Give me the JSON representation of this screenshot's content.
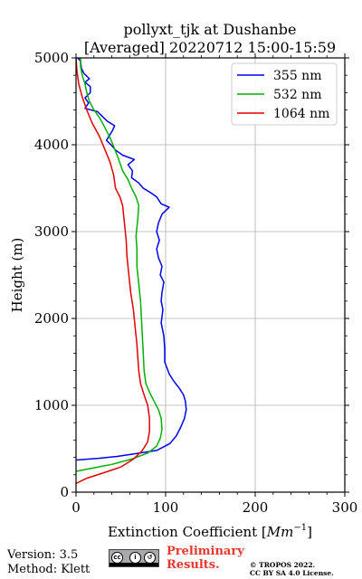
{
  "chart_data": {
    "type": "line",
    "title": "pollyxt_tjk at Dushanbe",
    "subtitle": "[Averaged] 20220712 15:00-15:59",
    "xlabel": "Extinction Coefficient [",
    "xlabel_unit": "Mm",
    "xlabel_exp": "−1",
    "xlabel_close": "]",
    "ylabel": "Height (m)",
    "xlim": [
      0,
      300
    ],
    "ylim": [
      0,
      5000
    ],
    "x_ticks": [
      "0",
      "100",
      "200",
      "300"
    ],
    "y_ticks": [
      "0",
      "1000",
      "2000",
      "3000",
      "4000",
      "5000"
    ],
    "grid": true,
    "legend_position": "top-right",
    "series": [
      {
        "name": "355 nm",
        "color": "#0000ee",
        "points": [
          [
            0,
            370
          ],
          [
            25,
            390
          ],
          [
            45,
            410
          ],
          [
            68,
            445
          ],
          [
            90,
            480
          ],
          [
            105,
            560
          ],
          [
            112,
            650
          ],
          [
            117,
            750
          ],
          [
            121,
            850
          ],
          [
            123,
            950
          ],
          [
            122,
            1050
          ],
          [
            120,
            1120
          ],
          [
            115,
            1200
          ],
          [
            109,
            1280
          ],
          [
            104,
            1360
          ],
          [
            99,
            1500
          ],
          [
            99,
            1650
          ],
          [
            98,
            1800
          ],
          [
            95,
            1950
          ],
          [
            97,
            2100
          ],
          [
            95,
            2200
          ],
          [
            96,
            2300
          ],
          [
            98,
            2420
          ],
          [
            94,
            2500
          ],
          [
            96,
            2600
          ],
          [
            92,
            2700
          ],
          [
            90,
            2800
          ],
          [
            93,
            2900
          ],
          [
            90,
            3000
          ],
          [
            92,
            3100
          ],
          [
            96,
            3200
          ],
          [
            104,
            3280
          ],
          [
            95,
            3320
          ],
          [
            90,
            3400
          ],
          [
            83,
            3450
          ],
          [
            75,
            3500
          ],
          [
            70,
            3560
          ],
          [
            62,
            3620
          ],
          [
            63,
            3700
          ],
          [
            58,
            3770
          ],
          [
            65,
            3830
          ],
          [
            52,
            3880
          ],
          [
            44,
            3940
          ],
          [
            39,
            4000
          ],
          [
            34,
            4050
          ],
          [
            37,
            4100
          ],
          [
            41,
            4170
          ],
          [
            43,
            4220
          ],
          [
            35,
            4270
          ],
          [
            29,
            4330
          ],
          [
            24,
            4380
          ],
          [
            10,
            4420
          ],
          [
            14,
            4480
          ],
          [
            10,
            4540
          ],
          [
            16,
            4600
          ],
          [
            16,
            4670
          ],
          [
            10,
            4720
          ],
          [
            15,
            4760
          ],
          [
            9,
            4820
          ],
          [
            6,
            4880
          ],
          [
            5,
            4960
          ],
          [
            2,
            5000
          ]
        ]
      },
      {
        "name": "532 nm",
        "color": "#00b000",
        "points": [
          [
            0,
            240
          ],
          [
            20,
            280
          ],
          [
            40,
            320
          ],
          [
            62,
            380
          ],
          [
            80,
            450
          ],
          [
            90,
            530
          ],
          [
            94,
            620
          ],
          [
            96,
            720
          ],
          [
            95,
            850
          ],
          [
            92,
            950
          ],
          [
            87,
            1050
          ],
          [
            82,
            1150
          ],
          [
            78,
            1250
          ],
          [
            76,
            1400
          ],
          [
            75,
            1600
          ],
          [
            74,
            1800
          ],
          [
            73,
            2000
          ],
          [
            72,
            2200
          ],
          [
            70,
            2400
          ],
          [
            68,
            2600
          ],
          [
            68,
            2800
          ],
          [
            67,
            2950
          ],
          [
            69,
            3150
          ],
          [
            70,
            3300
          ],
          [
            67,
            3400
          ],
          [
            62,
            3500
          ],
          [
            58,
            3600
          ],
          [
            52,
            3700
          ],
          [
            47,
            3850
          ],
          [
            42,
            3980
          ],
          [
            38,
            4080
          ],
          [
            33,
            4180
          ],
          [
            27,
            4300
          ],
          [
            20,
            4400
          ],
          [
            15,
            4500
          ],
          [
            12,
            4600
          ],
          [
            10,
            4700
          ],
          [
            7,
            4800
          ],
          [
            5,
            4900
          ],
          [
            5,
            5000
          ]
        ]
      },
      {
        "name": "1064 nm",
        "color": "#e00000",
        "points": [
          [
            0,
            100
          ],
          [
            12,
            160
          ],
          [
            30,
            220
          ],
          [
            50,
            290
          ],
          [
            64,
            380
          ],
          [
            74,
            480
          ],
          [
            80,
            580
          ],
          [
            82,
            700
          ],
          [
            82,
            850
          ],
          [
            80,
            1000
          ],
          [
            76,
            1120
          ],
          [
            72,
            1250
          ],
          [
            70,
            1400
          ],
          [
            69,
            1550
          ],
          [
            68,
            1700
          ],
          [
            66,
            1900
          ],
          [
            64,
            2100
          ],
          [
            61,
            2300
          ],
          [
            59,
            2500
          ],
          [
            57,
            2700
          ],
          [
            56,
            2900
          ],
          [
            54,
            3100
          ],
          [
            52,
            3300
          ],
          [
            49,
            3400
          ],
          [
            44,
            3500
          ],
          [
            42,
            3650
          ],
          [
            38,
            3800
          ],
          [
            32,
            3950
          ],
          [
            26,
            4100
          ],
          [
            18,
            4250
          ],
          [
            12,
            4400
          ],
          [
            7,
            4550
          ],
          [
            3,
            4700
          ],
          [
            1,
            4850
          ],
          [
            0,
            5000
          ]
        ]
      }
    ]
  },
  "footer": {
    "version": "Version: 3.5",
    "method": "Method: Klett",
    "preliminary_line1": "Preliminary",
    "preliminary_line2": "Results.",
    "copyright_line1": "© TROPOS 2022.",
    "copyright_line2": "CC BY SA 4.0 License.",
    "license_badge_text": "BY SA"
  }
}
